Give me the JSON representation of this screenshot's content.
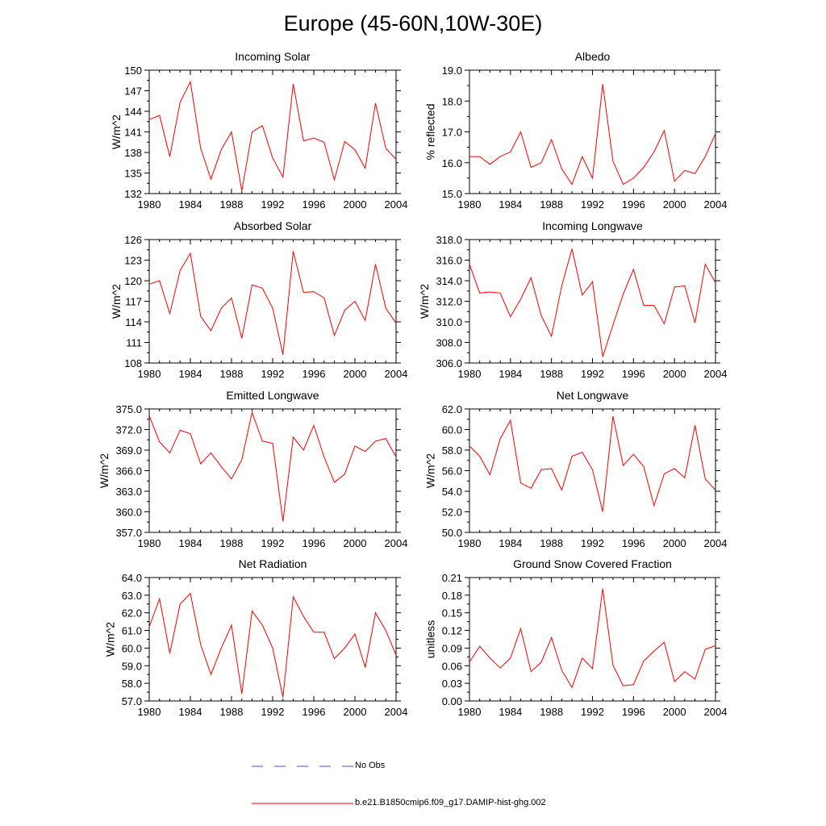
{
  "figure": {
    "title": "Europe (45-60N,10W-30E)"
  },
  "legend": {
    "entries": [
      {
        "label": "No Obs",
        "color": "#3355cc",
        "style": "dashed"
      },
      {
        "label": "b.e21.B1850cmip6.f09_g17.DAMIP-hist-ghg.002",
        "color": "#ff0000",
        "style": "solid"
      }
    ]
  },
  "chart_data": [
    {
      "type": "line",
      "title": "Incoming Solar",
      "ylabel": "W/m^2",
      "ylim": [
        132,
        150
      ],
      "yticks": [
        "132",
        "135",
        "138",
        "141",
        "144",
        "147",
        "150"
      ],
      "xlim": [
        1980,
        2004
      ],
      "xticks": [
        "1980",
        "1984",
        "1988",
        "1992",
        "1996",
        "2000",
        "2004"
      ],
      "x": [
        1980,
        1981,
        1982,
        1983,
        1984,
        1985,
        1986,
        1987,
        1988,
        1989,
        1990,
        1991,
        1992,
        1993,
        1994,
        1995,
        1996,
        1997,
        1998,
        1999,
        2000,
        2001,
        2002,
        2003,
        2004
      ],
      "series": [
        {
          "name": "b.e21.B1850cmip6.f09_g17.DAMIP-hist-ghg.002",
          "color": "#ff0000",
          "values": [
            142.8,
            143.4,
            137.4,
            145.3,
            148.3,
            138.6,
            134.1,
            138.4,
            141.0,
            132.4,
            141.0,
            141.9,
            137.2,
            134.4,
            148.0,
            139.7,
            140.1,
            139.5,
            134.0,
            139.6,
            138.4,
            135.7,
            145.2,
            138.6,
            137.0
          ]
        }
      ]
    },
    {
      "type": "line",
      "title": "Albedo",
      "ylabel": "% reflected",
      "ylim": [
        15.0,
        19.0
      ],
      "yticks": [
        "15.0",
        "16.0",
        "17.0",
        "18.0",
        "19.0"
      ],
      "xlim": [
        1980,
        2004
      ],
      "xticks": [
        "1980",
        "1984",
        "1988",
        "1992",
        "1996",
        "2000",
        "2004"
      ],
      "x": [
        1980,
        1981,
        1982,
        1983,
        1984,
        1985,
        1986,
        1987,
        1988,
        1989,
        1990,
        1991,
        1992,
        1993,
        1994,
        1995,
        1996,
        1997,
        1998,
        1999,
        2000,
        2001,
        2002,
        2003,
        2004
      ],
      "series": [
        {
          "name": "b.e21.B1850cmip6.f09_g17.DAMIP-hist-ghg.002",
          "color": "#ff0000",
          "values": [
            16.2,
            16.2,
            15.95,
            16.2,
            16.35,
            17.0,
            15.85,
            16.0,
            16.75,
            15.8,
            15.3,
            16.2,
            15.5,
            18.55,
            16.05,
            15.3,
            15.5,
            15.85,
            16.35,
            17.05,
            15.4,
            15.75,
            15.65,
            16.2,
            16.95
          ]
        }
      ]
    },
    {
      "type": "line",
      "title": "Absorbed Solar",
      "ylabel": "W/m^2",
      "ylim": [
        108,
        126
      ],
      "yticks": [
        "108",
        "111",
        "114",
        "117",
        "120",
        "123",
        "126"
      ],
      "xlim": [
        1980,
        2004
      ],
      "xticks": [
        "1980",
        "1984",
        "1988",
        "1992",
        "1996",
        "2000",
        "2004"
      ],
      "x": [
        1980,
        1981,
        1982,
        1983,
        1984,
        1985,
        1986,
        1987,
        1988,
        1989,
        1990,
        1991,
        1992,
        1993,
        1994,
        1995,
        1996,
        1997,
        1998,
        1999,
        2000,
        2001,
        2002,
        2003,
        2004
      ],
      "series": [
        {
          "name": "b.e21.B1850cmip6.f09_g17.DAMIP-hist-ghg.002",
          "color": "#ff0000",
          "values": [
            119.5,
            120.0,
            115.2,
            121.5,
            124.0,
            114.8,
            112.7,
            116.0,
            117.5,
            111.6,
            119.4,
            118.9,
            116.0,
            109.2,
            124.3,
            118.3,
            118.4,
            117.5,
            112.0,
            115.7,
            117.0,
            114.2,
            122.4,
            116.0,
            113.8
          ]
        }
      ]
    },
    {
      "type": "line",
      "title": "Incoming Longwave",
      "ylabel": "W/m^2",
      "ylim": [
        306.0,
        318.0
      ],
      "yticks": [
        "306.0",
        "308.0",
        "310.0",
        "312.0",
        "314.0",
        "316.0",
        "318.0"
      ],
      "xlim": [
        1980,
        2004
      ],
      "xticks": [
        "1980",
        "1984",
        "1988",
        "1992",
        "1996",
        "2000",
        "2004"
      ],
      "x": [
        1980,
        1981,
        1982,
        1983,
        1984,
        1985,
        1986,
        1987,
        1988,
        1989,
        1990,
        1991,
        1992,
        1993,
        1994,
        1995,
        1996,
        1997,
        1998,
        1999,
        2000,
        2001,
        2002,
        2003,
        2004
      ],
      "series": [
        {
          "name": "b.e21.B1850cmip6.f09_g17.DAMIP-hist-ghg.002",
          "color": "#ff0000",
          "values": [
            315.6,
            312.8,
            312.9,
            312.8,
            310.5,
            312.2,
            314.3,
            310.6,
            308.6,
            313.5,
            317.1,
            312.6,
            313.9,
            306.6,
            309.7,
            312.7,
            315.1,
            311.6,
            311.6,
            309.8,
            313.4,
            313.5,
            309.9,
            315.6,
            313.8
          ]
        }
      ]
    },
    {
      "type": "line",
      "title": "Emitted Longwave",
      "ylabel": "W/m^2",
      "ylim": [
        357.0,
        375.0
      ],
      "yticks": [
        "357.0",
        "360.0",
        "363.0",
        "366.0",
        "369.0",
        "372.0",
        "375.0"
      ],
      "xlim": [
        1980,
        2004
      ],
      "xticks": [
        "1980",
        "1984",
        "1988",
        "1992",
        "1996",
        "2000",
        "2004"
      ],
      "x": [
        1980,
        1981,
        1982,
        1983,
        1984,
        1985,
        1986,
        1987,
        1988,
        1989,
        1990,
        1991,
        1992,
        1993,
        1994,
        1995,
        1996,
        1997,
        1998,
        1999,
        2000,
        2001,
        2002,
        2003,
        2004
      ],
      "series": [
        {
          "name": "b.e21.B1850cmip6.f09_g17.DAMIP-hist-ghg.002",
          "color": "#ff0000",
          "values": [
            374.0,
            370.2,
            368.6,
            371.9,
            371.4,
            367.0,
            368.6,
            366.6,
            364.8,
            367.6,
            374.5,
            370.3,
            370.0,
            358.6,
            370.9,
            369.0,
            372.6,
            368.0,
            364.3,
            365.5,
            369.6,
            368.8,
            370.3,
            370.7,
            368.0
          ]
        }
      ]
    },
    {
      "type": "line",
      "title": "Net Longwave",
      "ylabel": "W/m^2",
      "ylim": [
        50.0,
        62.0
      ],
      "yticks": [
        "50.0",
        "52.0",
        "54.0",
        "56.0",
        "58.0",
        "60.0",
        "62.0"
      ],
      "xlim": [
        1980,
        2004
      ],
      "xticks": [
        "1980",
        "1984",
        "1988",
        "1992",
        "1996",
        "2000",
        "2004"
      ],
      "x": [
        1980,
        1981,
        1982,
        1983,
        1984,
        1985,
        1986,
        1987,
        1988,
        1989,
        1990,
        1991,
        1992,
        1993,
        1994,
        1995,
        1996,
        1997,
        1998,
        1999,
        2000,
        2001,
        2002,
        2003,
        2004
      ],
      "series": [
        {
          "name": "b.e21.B1850cmip6.f09_g17.DAMIP-hist-ghg.002",
          "color": "#ff0000",
          "values": [
            58.4,
            57.4,
            55.6,
            59.1,
            60.9,
            54.8,
            54.3,
            56.1,
            56.2,
            54.1,
            57.4,
            57.8,
            56.1,
            52.0,
            61.3,
            56.5,
            57.6,
            56.4,
            52.6,
            55.7,
            56.2,
            55.3,
            60.4,
            55.2,
            54.1
          ]
        }
      ]
    },
    {
      "type": "line",
      "title": "Net Radiation",
      "ylabel": "W/m^2",
      "ylim": [
        57.0,
        64.0
      ],
      "yticks": [
        "57.0",
        "58.0",
        "59.0",
        "60.0",
        "61.0",
        "62.0",
        "63.0",
        "64.0"
      ],
      "xlim": [
        1980,
        2004
      ],
      "xticks": [
        "1980",
        "1984",
        "1988",
        "1992",
        "1996",
        "2000",
        "2004"
      ],
      "x": [
        1980,
        1981,
        1982,
        1983,
        1984,
        1985,
        1986,
        1987,
        1988,
        1989,
        1990,
        1991,
        1992,
        1993,
        1994,
        1995,
        1996,
        1997,
        1998,
        1999,
        2000,
        2001,
        2002,
        2003,
        2004
      ],
      "series": [
        {
          "name": "b.e21.B1850cmip6.f09_g17.DAMIP-hist-ghg.002",
          "color": "#ff0000",
          "values": [
            61.2,
            62.8,
            59.7,
            62.5,
            63.1,
            60.2,
            58.5,
            60.0,
            61.3,
            57.4,
            62.1,
            61.3,
            60.0,
            57.2,
            62.9,
            61.8,
            60.9,
            60.9,
            59.4,
            60.0,
            60.8,
            58.9,
            62.0,
            61.0,
            59.6
          ]
        }
      ]
    },
    {
      "type": "line",
      "title": "Ground Snow Covered Fraction",
      "ylabel": "unitless",
      "ylim": [
        0.0,
        0.21
      ],
      "yticks": [
        "0.00",
        "0.03",
        "0.06",
        "0.09",
        "0.12",
        "0.15",
        "0.18",
        "0.21"
      ],
      "xlim": [
        1980,
        2004
      ],
      "xticks": [
        "1980",
        "1984",
        "1988",
        "1992",
        "1996",
        "2000",
        "2004"
      ],
      "x": [
        1980,
        1981,
        1982,
        1983,
        1984,
        1985,
        1986,
        1987,
        1988,
        1989,
        1990,
        1991,
        1992,
        1993,
        1994,
        1995,
        1996,
        1997,
        1998,
        1999,
        2000,
        2001,
        2002,
        2003,
        2004
      ],
      "series": [
        {
          "name": "b.e21.B1850cmip6.f09_g17.DAMIP-hist-ghg.002",
          "color": "#ff0000",
          "values": [
            0.066,
            0.093,
            0.073,
            0.056,
            0.073,
            0.123,
            0.05,
            0.066,
            0.108,
            0.052,
            0.023,
            0.073,
            0.055,
            0.191,
            0.061,
            0.026,
            0.028,
            0.068,
            0.085,
            0.1,
            0.033,
            0.05,
            0.037,
            0.088,
            0.094
          ]
        }
      ]
    }
  ]
}
